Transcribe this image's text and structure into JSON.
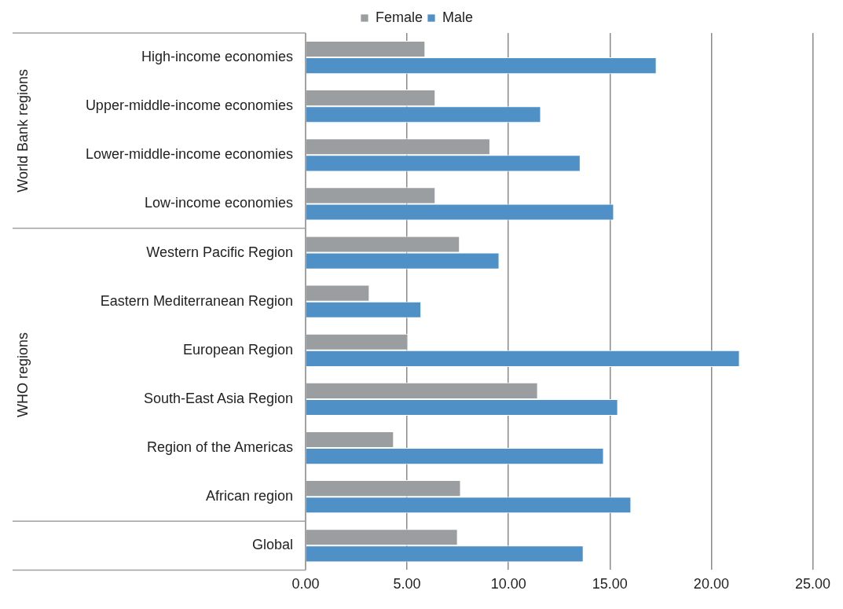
{
  "chart_data": {
    "type": "bar",
    "orientation": "horizontal",
    "categories": [
      "High-income economies",
      "Upper-middle-income economies",
      "Lower-middle-income economies",
      "Low-income economies",
      "Western Pacific Region",
      "Eastern Mediterranean Region",
      "European Region",
      "South-East Asia Region",
      "Region of the Americas",
      "African region",
      "Global"
    ],
    "series": [
      {
        "name": "Female",
        "color": "#9b9ea1",
        "values": [
          5.9,
          6.4,
          9.1,
          6.4,
          7.6,
          3.15,
          5.05,
          11.45,
          4.35,
          7.65,
          7.5
        ]
      },
      {
        "name": "Male",
        "color": "#4f90c6",
        "values": [
          17.3,
          11.6,
          13.55,
          15.2,
          9.55,
          5.7,
          21.4,
          15.4,
          14.7,
          16.05,
          13.7
        ]
      }
    ],
    "xlim": [
      0,
      25
    ],
    "xticks": [
      {
        "value": 0,
        "label": "0.00"
      },
      {
        "value": 5,
        "label": "5.00"
      },
      {
        "value": 10,
        "label": "10.00"
      },
      {
        "value": 15,
        "label": "15.00"
      },
      {
        "value": 20,
        "label": "20.00"
      },
      {
        "value": 25,
        "label": "25.00"
      }
    ],
    "grid": "x",
    "legend": "top",
    "annotations": [
      "World Bank regions",
      "WHO regions"
    ]
  }
}
